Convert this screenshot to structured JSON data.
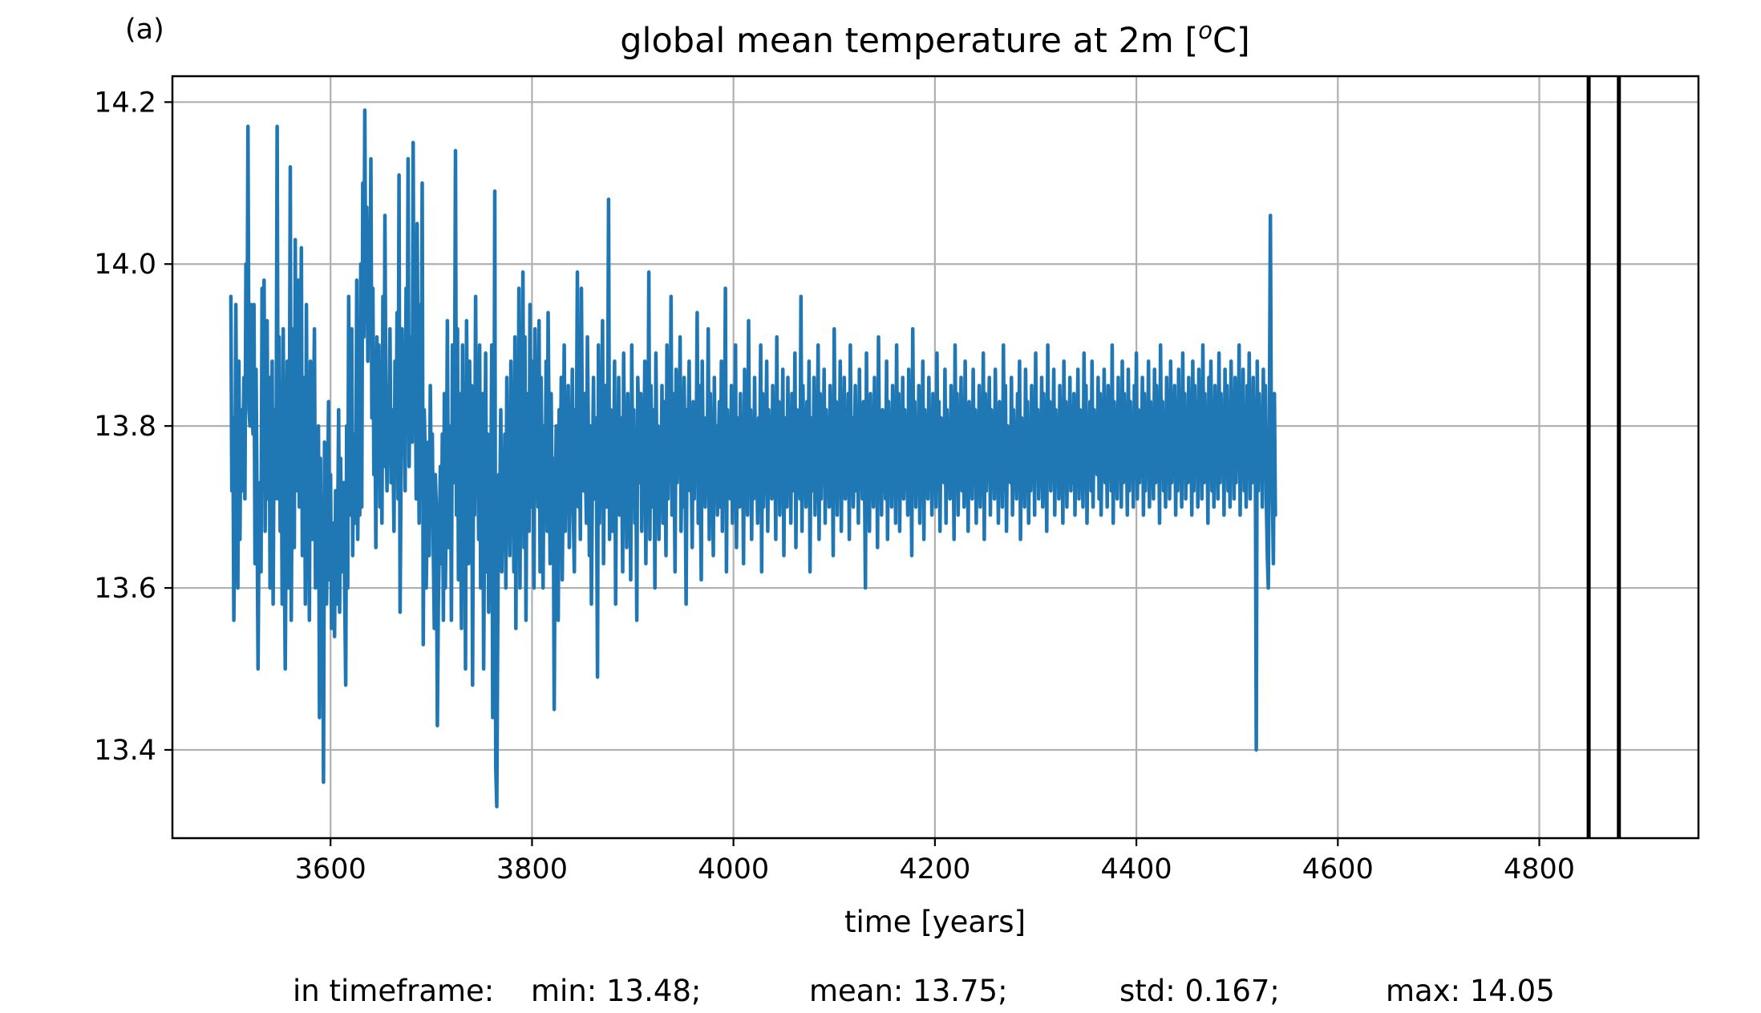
{
  "chart_data": {
    "type": "line",
    "panel_label": "(a)",
    "title": "global mean temperature at 2m [",
    "title_sup": "o",
    "title_unit": "C]",
    "xlabel": "time [years]",
    "ylabel": "",
    "xlim": [
      3443,
      4958
    ],
    "ylim": [
      13.291,
      14.232
    ],
    "xticks": [
      3600,
      3800,
      4000,
      4200,
      4400,
      4600,
      4800
    ],
    "yticks": [
      13.4,
      13.6,
      13.8,
      14.0,
      14.2
    ],
    "ytick_labels": [
      "13.4",
      "13.6",
      "13.8",
      "14.0",
      "14.2"
    ],
    "grid": true,
    "line_color": "#1f77b4",
    "vline_color": "#000000",
    "vlines": [
      4849,
      4879
    ],
    "x_start": 3501,
    "x_step": 1,
    "series": [
      {
        "y": [
          13.96,
          13.72,
          13.81,
          13.56,
          13.71,
          13.95,
          13.72,
          13.6,
          13.88,
          13.66,
          13.82,
          13.72,
          13.77,
          13.86,
          13.71,
          14.0,
          13.85,
          14.17,
          13.82,
          13.8,
          13.95,
          13.83,
          13.79,
          13.95,
          13.63,
          13.87,
          13.71,
          13.5,
          13.69,
          13.73,
          13.62,
          13.97,
          13.74,
          13.98,
          13.67,
          13.8,
          13.93,
          13.71,
          13.86,
          13.6,
          13.64,
          13.88,
          13.58,
          13.82,
          13.71,
          13.78,
          14.17,
          13.71,
          13.91,
          13.67,
          13.81,
          13.58,
          13.92,
          13.67,
          13.5,
          13.69,
          13.88,
          13.6,
          13.75,
          14.12,
          13.56,
          13.78,
          13.92,
          13.65,
          14.03,
          13.72,
          13.75,
          13.98,
          13.7,
          13.82,
          14.02,
          13.64,
          13.81,
          13.86,
          13.58,
          13.95,
          13.7,
          13.74,
          13.56,
          13.88,
          13.69,
          13.66,
          13.81,
          13.92,
          13.6,
          13.72,
          13.67,
          13.8,
          13.44,
          13.76,
          13.58,
          13.67,
          13.36,
          13.78,
          13.72,
          13.58,
          13.68,
          13.83,
          13.61,
          13.74,
          13.55,
          13.6,
          13.68,
          13.54,
          13.72,
          13.58,
          13.66,
          13.82,
          13.57,
          13.76,
          13.62,
          13.69,
          13.73,
          13.6,
          13.48,
          13.8,
          13.6,
          13.96,
          13.73,
          13.69,
          13.92,
          13.64,
          13.79,
          13.68,
          13.72,
          13.98,
          13.66,
          13.8,
          13.69,
          14.0,
          13.7,
          14.1,
          13.91,
          14.19,
          13.93,
          14.07,
          13.88,
          14.04,
          13.91,
          14.13,
          13.81,
          13.97,
          13.74,
          13.83,
          13.65,
          13.91,
          13.77,
          13.9,
          13.7,
          13.83,
          13.68,
          13.96,
          13.75,
          14.06,
          13.81,
          13.72,
          13.85,
          13.78,
          13.92,
          13.73,
          13.82,
          13.77,
          13.67,
          13.88,
          13.75,
          13.94,
          13.71,
          14.11,
          13.57,
          13.74,
          13.92,
          13.79,
          13.87,
          13.72,
          13.97,
          13.82,
          14.13,
          13.75,
          13.91,
          13.86,
          13.78,
          14.15,
          13.8,
          13.95,
          13.71,
          14.05,
          13.84,
          13.68,
          13.95,
          13.8,
          14.1,
          13.53,
          13.82,
          13.76,
          13.6,
          13.69,
          13.78,
          13.64,
          13.85,
          13.72,
          13.79,
          13.65,
          13.55,
          13.74,
          13.7,
          13.43,
          13.58,
          13.66,
          13.75,
          13.63,
          13.79,
          13.56,
          13.84,
          13.6,
          13.72,
          13.93,
          13.65,
          13.72,
          13.8,
          13.56,
          13.9,
          13.73,
          13.78,
          14.14,
          13.69,
          13.92,
          13.61,
          13.84,
          13.72,
          13.55,
          13.9,
          13.67,
          13.81,
          13.5,
          13.93,
          13.76,
          13.63,
          13.88,
          13.75,
          13.85,
          13.48,
          13.8,
          13.69,
          13.96,
          13.72,
          13.81,
          13.66,
          13.9,
          13.6,
          13.77,
          13.84,
          13.5,
          13.71,
          13.89,
          13.62,
          13.79,
          13.57,
          13.73,
          13.68,
          13.9,
          13.44,
          13.6,
          14.09,
          13.38,
          13.33,
          13.56,
          13.74,
          13.7,
          13.82,
          13.62,
          13.75,
          13.67,
          13.79,
          13.6,
          13.86,
          13.69,
          13.75,
          13.64,
          13.88,
          13.72,
          13.79,
          13.62,
          13.91,
          13.55,
          13.82,
          13.68,
          13.97,
          13.6,
          13.8,
          13.75,
          13.99,
          13.65,
          13.91,
          13.56,
          13.78,
          13.84,
          13.67,
          13.95,
          13.7,
          13.88,
          13.74,
          13.6,
          13.92,
          13.76,
          13.82,
          13.7,
          13.93,
          13.62,
          13.86,
          13.75,
          13.6,
          13.8,
          13.71,
          13.88,
          13.67,
          13.94,
          13.78,
          13.63,
          13.84,
          13.7,
          13.76,
          13.45,
          13.68,
          13.8,
          13.73,
          13.56,
          13.82,
          13.71,
          13.86,
          13.61,
          13.75,
          13.9,
          13.67,
          13.8,
          13.74,
          13.85,
          13.65,
          13.78,
          13.73,
          13.87,
          13.69,
          13.62,
          13.82,
          13.76,
          13.99,
          13.7,
          13.83,
          13.66,
          13.97,
          13.79,
          13.72,
          13.84,
          13.75,
          13.68,
          13.91,
          13.78,
          13.64,
          13.8,
          13.58,
          13.74,
          13.86,
          13.71,
          13.81,
          13.76,
          13.49,
          13.9,
          13.68,
          13.82,
          13.75,
          13.93,
          13.63,
          13.79,
          13.85,
          13.7,
          13.76,
          14.08,
          13.66,
          13.82,
          13.78,
          13.67,
          13.74,
          13.88,
          13.58,
          13.8,
          13.73,
          13.86,
          13.69,
          13.81,
          13.76,
          13.62,
          13.89,
          13.72,
          13.79,
          13.65,
          13.84,
          13.71,
          13.77,
          13.61,
          13.9,
          13.74,
          13.82,
          13.68,
          13.78,
          13.56,
          13.86,
          13.8,
          13.73,
          13.84,
          13.67,
          13.79,
          13.75,
          13.88,
          13.63,
          13.81,
          13.72,
          13.99,
          13.66,
          13.85,
          13.77,
          13.7,
          13.82,
          13.6,
          13.89,
          13.74,
          13.8,
          13.66,
          13.78,
          13.72,
          13.85,
          13.68,
          13.83,
          13.76,
          13.64,
          13.9,
          13.71,
          13.8,
          13.74,
          13.96,
          13.69,
          13.84,
          13.77,
          13.62,
          13.87,
          13.73,
          13.81,
          13.75,
          13.91,
          13.67,
          13.79,
          13.7,
          13.86,
          13.74,
          13.58,
          13.82,
          13.78,
          13.88,
          13.72,
          13.76,
          13.65,
          13.83,
          13.71,
          13.8,
          13.77,
          13.94,
          13.68,
          13.85,
          13.73,
          13.61,
          13.88,
          13.75,
          13.81,
          13.7,
          13.79,
          13.76,
          13.92,
          13.66,
          13.84,
          13.72,
          13.78,
          13.64,
          13.86,
          13.74,
          13.8,
          13.69,
          13.77,
          13.83,
          13.7,
          13.88,
          13.67,
          13.81,
          13.75,
          13.97,
          13.62,
          13.82,
          13.73,
          13.79,
          13.71,
          13.85,
          13.68,
          13.77,
          13.74,
          13.9,
          13.65,
          13.81,
          13.76,
          13.7,
          13.84,
          13.72,
          13.78,
          13.63,
          13.87,
          13.75,
          13.8,
          13.69,
          13.93,
          13.74,
          13.82,
          13.66,
          13.79,
          13.71,
          13.86,
          13.73,
          13.77,
          13.68,
          13.81,
          13.75,
          13.9,
          13.62,
          13.84,
          13.7,
          13.78,
          13.76,
          13.88,
          13.67,
          13.82,
          13.73,
          13.79,
          13.71,
          13.85,
          13.74,
          13.8,
          13.66,
          13.91,
          13.72,
          13.83,
          13.69,
          13.78,
          13.75,
          13.87,
          13.64,
          13.81,
          13.76,
          13.7,
          13.86,
          13.73,
          13.79,
          13.68,
          13.84,
          13.77,
          13.72,
          13.89,
          13.65,
          13.82,
          13.74,
          13.8,
          13.71,
          13.96,
          13.67,
          13.85,
          13.75,
          13.78,
          13.7,
          13.83,
          13.73,
          13.88,
          13.62,
          13.81,
          13.76,
          13.72,
          13.86,
          13.69,
          13.79,
          13.74,
          13.9,
          13.66,
          13.84,
          13.71,
          13.8,
          13.75,
          13.87,
          13.68,
          13.82,
          13.73,
          13.78,
          13.7,
          13.85,
          13.76,
          13.81,
          13.64,
          13.92,
          13.72,
          13.83,
          13.69,
          13.79,
          13.74,
          13.88,
          13.67,
          13.8,
          13.75,
          13.86,
          13.71,
          13.78,
          13.73,
          13.84,
          13.66,
          13.9,
          13.74,
          13.81,
          13.7,
          13.77,
          13.85,
          13.72,
          13.82,
          13.68,
          13.87,
          13.75,
          13.79,
          13.71,
          13.83,
          13.76,
          13.6,
          13.89,
          13.73,
          13.8,
          13.67,
          13.84,
          13.74,
          13.78,
          13.7,
          13.86,
          13.72,
          13.81,
          13.65,
          13.91,
          13.75,
          13.8,
          13.69,
          13.82,
          13.73,
          13.77,
          13.71,
          13.88,
          13.66,
          13.83,
          13.76,
          13.79,
          13.7,
          13.85,
          13.74,
          13.81,
          13.68,
          13.9,
          13.72,
          13.84,
          13.67,
          13.79,
          13.75,
          13.86,
          13.71,
          13.82,
          13.73,
          13.78,
          13.69,
          13.87,
          13.76,
          13.8,
          13.64,
          13.92,
          13.74,
          13.83,
          13.7,
          13.79,
          13.72,
          13.85,
          13.68,
          13.81,
          13.75,
          13.88,
          13.66,
          13.82,
          13.73,
          13.78,
          13.71,
          13.86,
          13.74,
          13.8,
          13.69,
          13.84,
          13.76,
          13.79,
          13.7,
          13.89,
          13.72,
          13.83,
          13.67,
          13.81,
          13.75,
          13.77,
          13.73,
          13.87,
          13.68,
          13.82,
          13.74,
          13.79,
          13.71,
          13.85,
          13.76,
          13.8,
          13.66,
          13.9,
          13.73,
          13.84,
          13.69,
          13.78,
          13.75,
          13.86,
          13.72,
          13.81,
          13.7,
          13.88,
          13.74,
          13.79,
          13.67,
          13.83,
          13.76,
          13.8,
          13.71,
          13.87,
          13.73,
          13.82,
          13.68,
          13.79,
          13.75,
          13.85,
          13.7,
          13.81,
          13.74,
          13.89,
          13.66,
          13.84,
          13.72,
          13.78,
          13.76,
          13.86,
          13.69,
          13.82,
          13.73,
          13.8,
          13.71,
          13.87,
          13.75,
          13.79,
          13.68,
          13.83,
          13.74,
          13.81,
          13.7,
          13.9,
          13.72,
          13.85,
          13.67,
          13.8,
          13.76,
          13.78,
          13.73,
          13.86,
          13.69,
          13.82,
          13.75,
          13.79,
          13.71,
          13.84,
          13.74,
          13.88,
          13.66,
          13.81,
          13.73,
          13.8,
          13.7,
          13.87,
          13.76,
          13.83,
          13.68,
          13.79,
          13.72,
          13.85,
          13.74,
          13.81,
          13.69,
          13.89,
          13.75,
          13.82,
          13.71,
          13.78,
          13.73,
          13.86,
          13.7,
          13.84,
          13.76,
          13.8,
          13.67,
          13.9,
          13.74,
          13.83,
          13.72,
          13.79,
          13.75,
          13.87,
          13.69,
          13.82,
          13.73,
          13.81,
          13.71,
          13.85,
          13.76,
          13.8,
          13.68,
          13.88,
          13.74,
          13.83,
          13.7,
          13.79,
          13.75,
          13.86,
          13.72,
          13.81,
          13.73,
          13.84,
          13.69,
          13.8,
          13.76,
          13.87,
          13.71,
          13.82,
          13.74,
          13.78,
          13.7,
          13.89,
          13.73,
          13.85,
          13.68,
          13.81,
          13.75,
          13.83,
          13.72,
          13.88,
          13.7,
          13.82,
          13.76,
          13.79,
          13.74,
          13.86,
          13.71,
          13.84,
          13.69,
          13.8,
          13.75,
          13.87,
          13.73,
          13.82,
          13.7,
          13.85,
          13.76,
          13.81,
          13.72,
          13.9,
          13.68,
          13.83,
          13.74,
          13.79,
          13.71,
          13.86,
          13.75,
          13.82,
          13.7,
          13.88,
          13.73,
          13.84,
          13.76,
          13.8,
          13.69,
          13.87,
          13.72,
          13.83,
          13.74,
          13.81,
          13.7,
          13.85,
          13.75,
          13.89,
          13.71,
          13.82,
          13.73,
          13.8,
          13.76,
          13.86,
          13.69,
          13.84,
          13.72,
          13.81,
          13.74,
          13.88,
          13.7,
          13.83,
          13.75,
          13.79,
          13.71,
          13.87,
          13.73,
          13.85,
          13.76,
          13.82,
          13.68,
          13.9,
          13.74,
          13.83,
          13.72,
          13.8,
          13.7,
          13.86,
          13.75,
          13.84,
          13.71,
          13.88,
          13.73,
          13.81,
          13.76,
          13.85,
          13.69,
          13.83,
          13.72,
          13.87,
          13.74,
          13.8,
          13.7,
          13.89,
          13.75,
          13.84,
          13.71,
          13.82,
          13.73,
          13.86,
          13.76,
          13.81,
          13.69,
          13.88,
          13.72,
          13.85,
          13.74,
          13.83,
          13.7,
          13.87,
          13.75,
          13.82,
          13.71,
          13.9,
          13.73,
          13.84,
          13.76,
          13.81,
          13.68,
          13.86,
          13.74,
          13.88,
          13.72,
          13.83,
          13.7,
          13.85,
          13.75,
          13.8,
          13.71,
          13.89,
          13.73,
          13.84,
          13.76,
          13.82,
          13.69,
          13.87,
          13.74,
          13.85,
          13.72,
          13.81,
          13.7,
          13.88,
          13.75,
          13.83,
          13.71,
          13.86,
          13.73,
          13.82,
          13.76,
          13.9,
          13.69,
          13.84,
          13.74,
          13.87,
          13.72,
          13.81,
          13.7,
          13.85,
          13.75,
          13.89,
          13.71,
          13.83,
          13.73,
          13.86,
          13.76,
          13.82,
          13.4,
          13.88,
          13.72,
          13.84,
          13.74,
          13.81,
          13.7,
          13.87,
          13.75,
          13.85,
          13.71,
          13.64,
          13.6,
          13.8,
          14.06,
          13.78,
          13.72,
          13.63,
          13.84,
          13.69
        ],
        "color": "#1f77b4"
      }
    ],
    "stats": {
      "prefix": "in timeframe:",
      "min": "min: 13.48;",
      "mean": "mean: 13.75;",
      "std": "std: 0.167;",
      "max": "max: 14.05"
    }
  }
}
